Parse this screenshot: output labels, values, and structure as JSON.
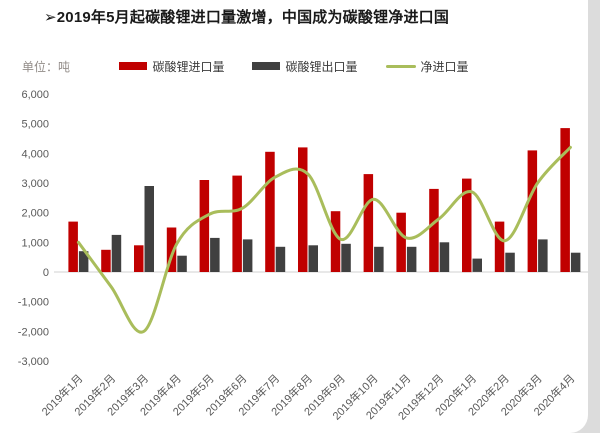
{
  "page": {
    "title": "➢2019年5月起碳酸锂进口量激增，中国成为碳酸锂净进口国",
    "unit_label": "单位：吨"
  },
  "legend": [
    {
      "label": "碳酸锂进口量",
      "type": "bar",
      "color": "#c00000"
    },
    {
      "label": "碳酸锂出口量",
      "type": "bar",
      "color": "#404040"
    },
    {
      "label": "净进口量",
      "type": "line",
      "color": "#a9bd5b"
    }
  ],
  "chart_data": {
    "type": "bar+line",
    "title": "2019年5月起碳酸锂进口量激增，中国成为碳酸锂净进口国",
    "ylabel": "单位：吨",
    "xlabel": "",
    "categories": [
      "2019年1月",
      "2019年2月",
      "2019年3月",
      "2019年4月",
      "2019年5月",
      "2019年6月",
      "2019年7月",
      "2019年8月",
      "2019年9月",
      "2019年10月",
      "2019年11月",
      "2019年12月",
      "2020年1月",
      "2020年2月",
      "2020年3月",
      "2020年4月"
    ],
    "series": [
      {
        "name": "碳酸锂进口量",
        "type": "bar",
        "color": "#c00000",
        "values": [
          1700,
          750,
          900,
          1500,
          3100,
          3250,
          4050,
          4200,
          2050,
          3300,
          2000,
          2800,
          3150,
          1700,
          4100,
          4850
        ]
      },
      {
        "name": "碳酸锂出口量",
        "type": "bar",
        "color": "#404040",
        "values": [
          700,
          1250,
          2900,
          550,
          1150,
          1100,
          850,
          900,
          950,
          850,
          850,
          1000,
          450,
          650,
          1100,
          650
        ]
      },
      {
        "name": "净进口量",
        "type": "line",
        "color": "#a9bd5b",
        "values": [
          1000,
          -500,
          -2000,
          950,
          1950,
          2150,
          3200,
          3300,
          1100,
          2450,
          1150,
          1800,
          2700,
          1050,
          3000,
          4200
        ]
      }
    ],
    "ylim": [
      -3000,
      6000
    ],
    "ytick_step": 1000,
    "ytick_labels": [
      "6,000",
      "5,000",
      "4,000",
      "3,000",
      "2,000",
      "1,000",
      "0",
      "-1,000",
      "-2,000",
      "-3,000"
    ],
    "grid": false,
    "legend_position": "top",
    "axis_color": "#d9d9d9",
    "tick_text_color": "#595959"
  }
}
